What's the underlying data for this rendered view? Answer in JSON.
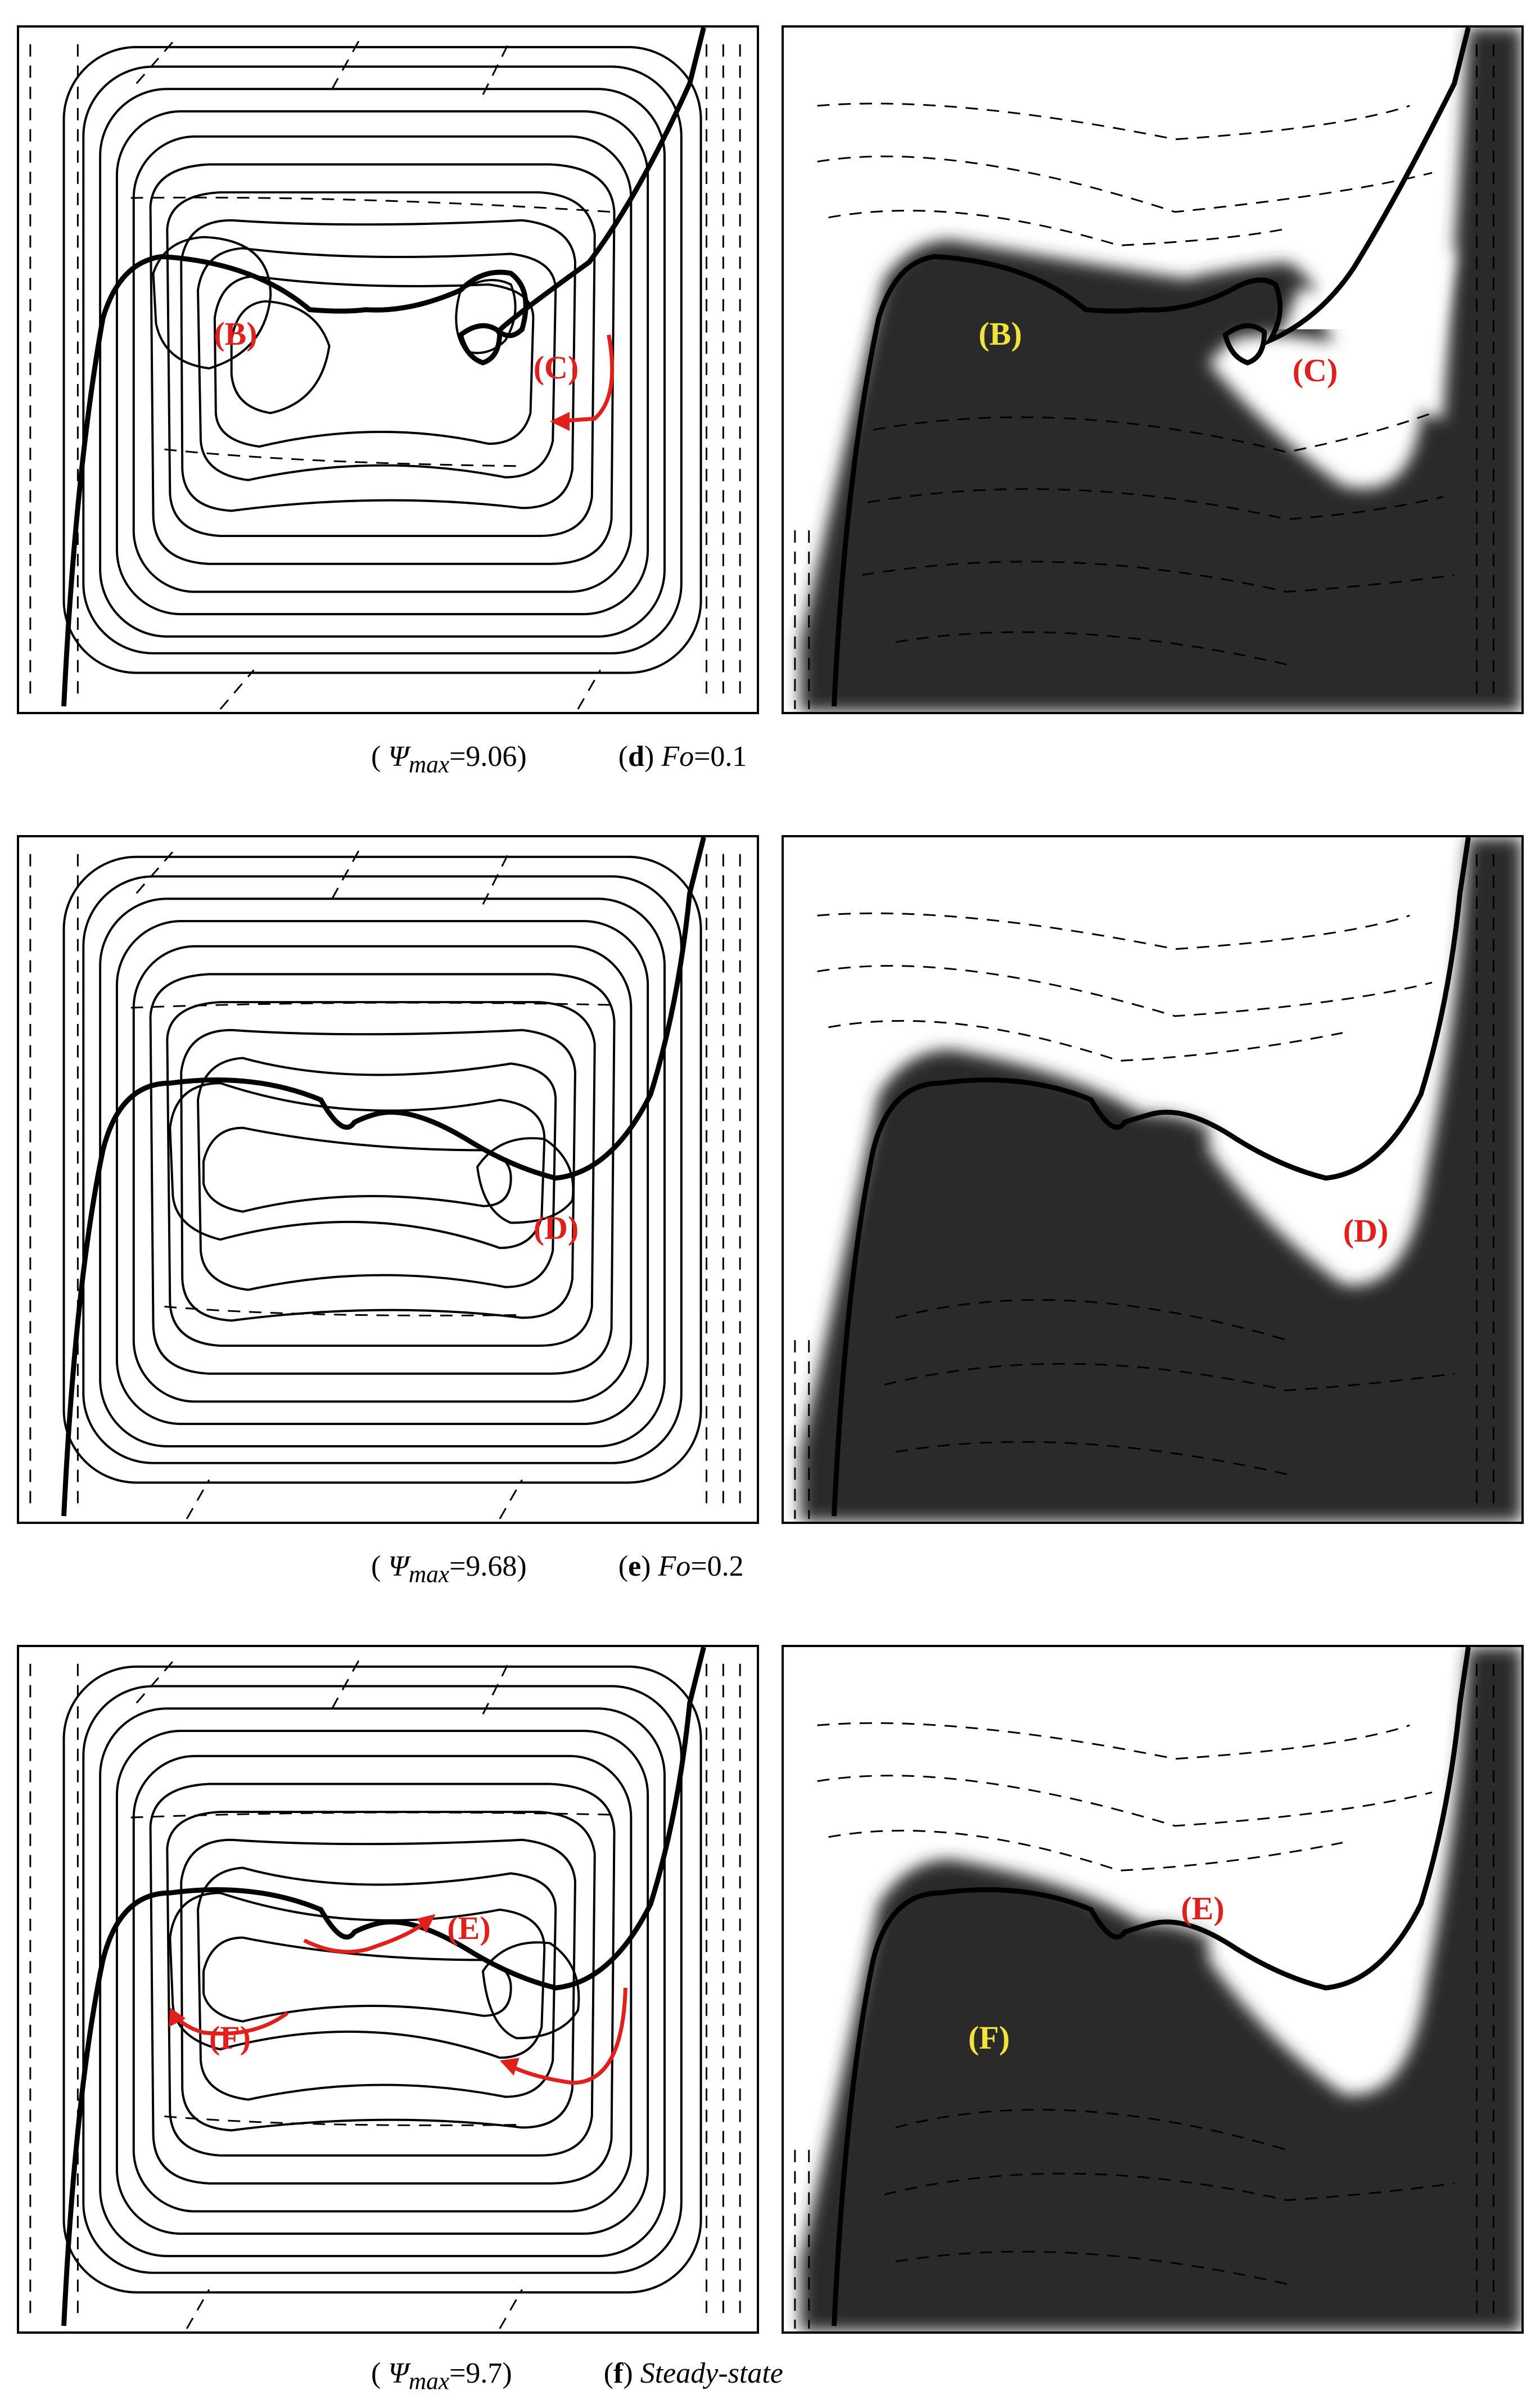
{
  "rows": [
    {
      "psi_symbol": "Ψ",
      "psi_sub": "max",
      "psi_value": "9.06",
      "panel_letter": "d",
      "fo_label": "Fo",
      "fo_value": "=0.1",
      "left_labels": [
        "(B)",
        "(C)"
      ],
      "right_labels": [
        "(B)",
        "(C)"
      ]
    },
    {
      "psi_symbol": "Ψ",
      "psi_sub": "max",
      "psi_value": "9.68",
      "panel_letter": "e",
      "fo_label": "Fo",
      "fo_value": "=0.2",
      "left_labels": [
        "(D)"
      ],
      "right_labels": [
        "(D)"
      ]
    },
    {
      "psi_symbol": "Ψ",
      "psi_sub": "max",
      "psi_value": "9.7",
      "panel_letter": "f",
      "fo_label": "Steady-state",
      "fo_value": "",
      "left_labels": [
        "(E)",
        "(F)"
      ],
      "right_labels": [
        "(E)",
        "(F)"
      ]
    }
  ],
  "colors": {
    "label_red": "#e0201c",
    "label_yellow": "#f2e23a",
    "dark_region": "#2b2b2b",
    "arrow_red": "#e0201c"
  }
}
